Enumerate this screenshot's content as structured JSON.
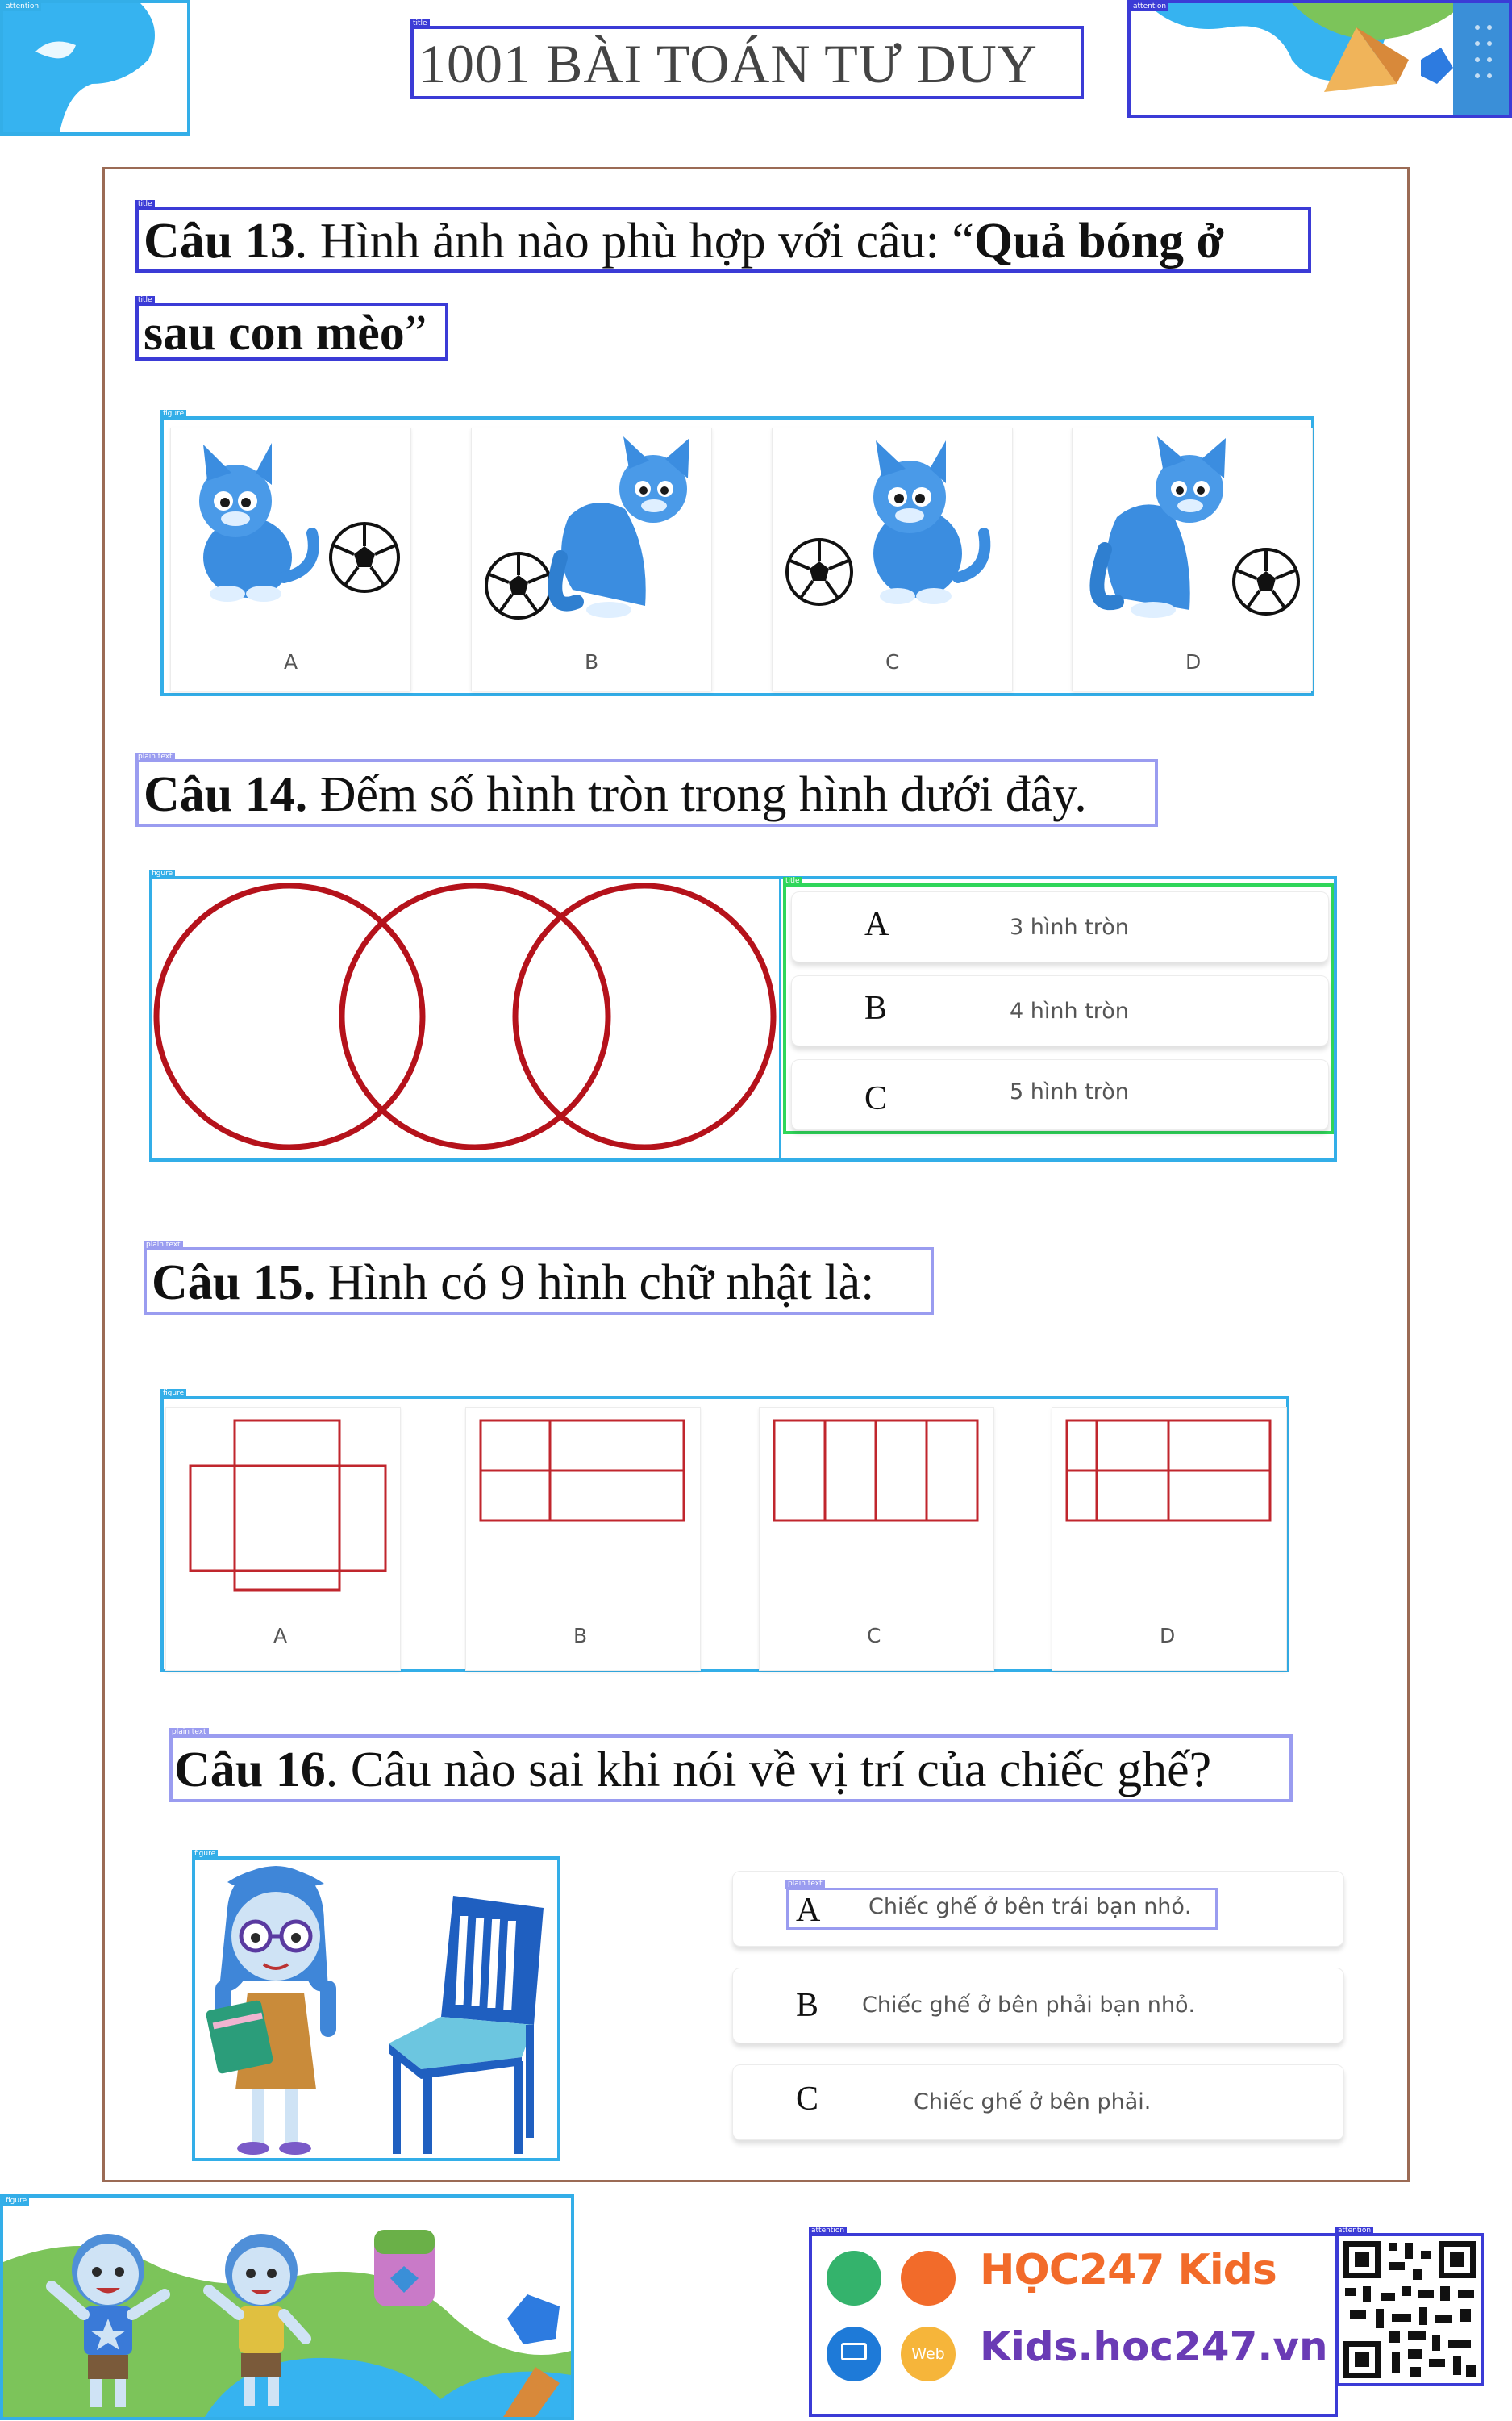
{
  "header": {
    "title": "1001 BÀI TOÁN TƯ DUY"
  },
  "q13": {
    "number": "Câu 13",
    "text": ". Hình ảnh nào phù hợp với câu: “",
    "quote1": "Quả bóng ở",
    "quote2": "sau con mèo",
    "end": "”",
    "options": [
      "A",
      "B",
      "C",
      "D"
    ]
  },
  "q14": {
    "number": "Câu 14.",
    "text": " Đếm số hình tròn trong hình dưới đây.",
    "answers": [
      {
        "letter": "A",
        "text": "3 hình tròn"
      },
      {
        "letter": "B",
        "text": "4 hình tròn"
      },
      {
        "letter": "C",
        "text": "5 hình tròn"
      }
    ]
  },
  "q15": {
    "number": "Câu 15.",
    "text": " Hình có 9 hình chữ nhật là:",
    "options": [
      "A",
      "B",
      "C",
      "D"
    ]
  },
  "q16": {
    "number": "Câu 16",
    "text": ". Câu nào sai khi nói về vị trí của chiếc ghế?",
    "answers": [
      {
        "letter": "A",
        "text": "Chiếc ghế ở bên trái bạn nhỏ."
      },
      {
        "letter": "B",
        "text": "Chiếc ghế ở bên phải bạn nhỏ."
      },
      {
        "letter": "C",
        "text": "Chiếc ghế ở bên phải."
      }
    ]
  },
  "footer": {
    "brand": "HỌC247",
    "brand_kids": "Kids",
    "site": "Kids.hoc247.vn",
    "web_badge": "Web"
  },
  "colors": {
    "frame_border": "#9b6b55",
    "circle_red": "#b5121b",
    "rect_red": "#c0262d",
    "cat_blue": "#3b8de0",
    "detect_blue": "#3b3bd6",
    "detect_cyan": "#33aee8",
    "detect_green": "#2fd65a",
    "brand_orange": "#f26b2a",
    "brand_purple": "#6a3bb5"
  }
}
